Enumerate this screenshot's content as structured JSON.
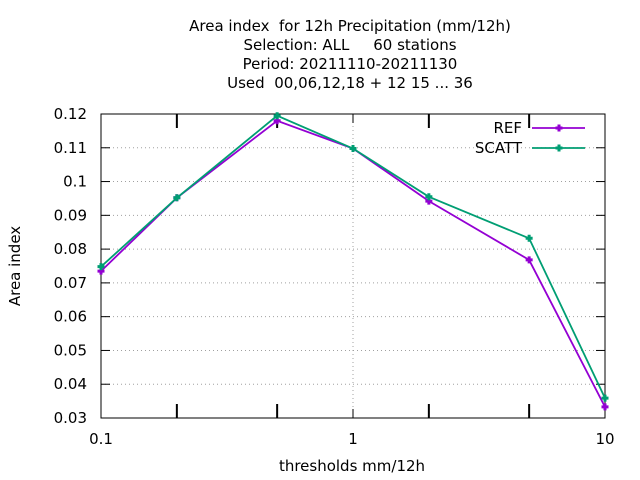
{
  "chart_data": {
    "type": "line",
    "title_lines": [
      "Area index  for 12h Precipitation (mm/12h)",
      "Selection: ALL     60 stations",
      "Period: 20211110-20211130",
      "Used  00,06,12,18 + 12 15 ... 36"
    ],
    "xlabel": "thresholds mm/12h",
    "ylabel": "Area index",
    "x_scale": "log",
    "xlim": [
      0.1,
      10
    ],
    "ylim": [
      0.03,
      0.12
    ],
    "x_tick_labels": [
      {
        "value": 0.1,
        "label": "0.1"
      },
      {
        "value": 1,
        "label": "1"
      },
      {
        "value": 10,
        "label": "10"
      }
    ],
    "x_minor_ticks": [
      0.2,
      0.5,
      2,
      5
    ],
    "y_ticks": [
      0.03,
      0.04,
      0.05,
      0.06,
      0.07,
      0.08,
      0.09,
      0.1,
      0.11,
      0.12
    ],
    "y_tick_labels": [
      "0.03",
      "0.04",
      "0.05",
      "0.06",
      "0.07",
      "0.08",
      "0.09",
      "0.1",
      "0.11",
      "0.12"
    ],
    "grid": true,
    "legend_position": "top-right",
    "x": [
      0.1,
      0.2,
      0.5,
      1,
      2,
      5,
      10
    ],
    "series": [
      {
        "name": "REF",
        "color": "#9400d3",
        "values": [
          0.0735,
          0.0952,
          0.118,
          0.1098,
          0.0942,
          0.0768,
          0.0333
        ]
      },
      {
        "name": "SCATT",
        "color": "#009e73",
        "values": [
          0.0748,
          0.0952,
          0.1195,
          0.1098,
          0.0955,
          0.0832,
          0.0359
        ]
      }
    ]
  }
}
